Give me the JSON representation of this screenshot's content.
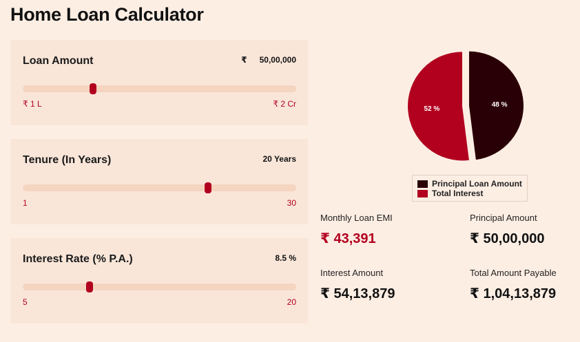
{
  "title": "Home Loan Calculator",
  "sliders": [
    {
      "label": "Loan Amount",
      "currency": "₹",
      "value": "50,00,000",
      "min_label": "₹ 1 L",
      "max_label": "₹ 2 Cr",
      "fraction": 0.256
    },
    {
      "label": "Tenure (In Years)",
      "currency": "",
      "value": "20 Years",
      "min_label": "1",
      "max_label": "30",
      "fraction": 0.677
    },
    {
      "label": "Interest Rate (% P.A.)",
      "currency": "",
      "value": "8.5 %",
      "min_label": "5",
      "max_label": "20",
      "fraction": 0.245
    }
  ],
  "chart_data": {
    "type": "pie",
    "slices": [
      {
        "name": "Principal Loan Amount",
        "value": 48,
        "label": "48 %",
        "color": "#2a0007"
      },
      {
        "name": "Total Interest",
        "value": 52,
        "label": "52 %",
        "color": "#b2001f"
      }
    ],
    "legend_position": "bottom"
  },
  "legend": [
    {
      "label": "Principal Loan Amount",
      "color": "#2a0007"
    },
    {
      "label": "Total Interest",
      "color": "#b2001f"
    }
  ],
  "results": {
    "emi_label": "Monthly Loan EMI",
    "emi_value": "₹ 43,391",
    "principal_label": "Principal Amount",
    "principal_value": "₹ 50,00,000",
    "interest_label": "Interest Amount",
    "interest_value": "₹ 54,13,879",
    "total_label": "Total Amount Payable",
    "total_value": "₹ 1,04,13,879"
  }
}
